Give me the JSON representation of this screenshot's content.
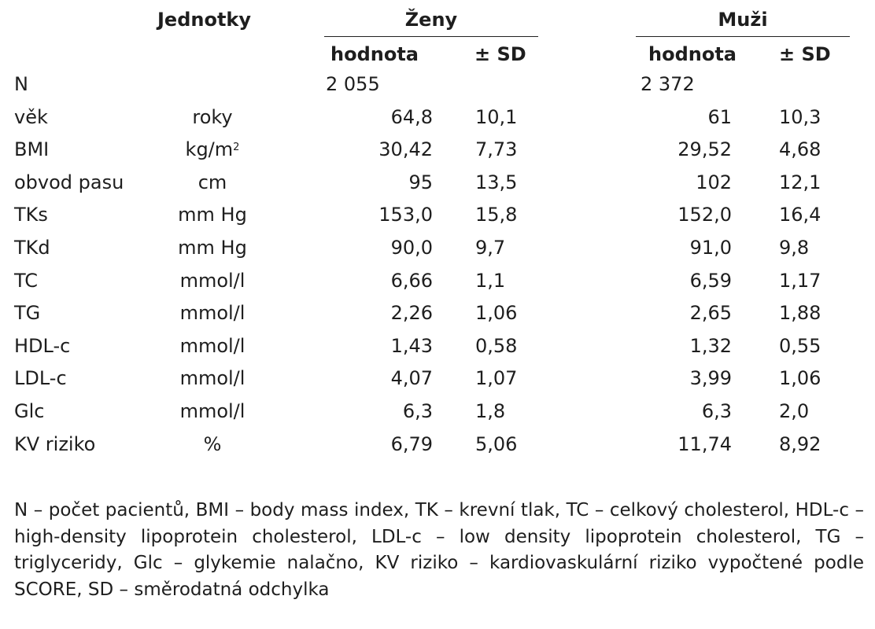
{
  "table": {
    "header": {
      "units": "Jednotky",
      "women": "Ženy",
      "men": "Muži",
      "value": "hodnota",
      "sd": "± SD"
    },
    "rows": [
      {
        "label": "N",
        "unit": "",
        "w_val": "2 055",
        "w_sd": "",
        "m_val": "2 372",
        "m_sd": ""
      },
      {
        "label": "věk",
        "unit": "roky",
        "w_val": "64,8",
        "w_sd": "10,1",
        "m_val": "61",
        "m_sd": "10,3"
      },
      {
        "label": "BMI",
        "unit": "kg/m",
        "unit_sup": "2",
        "w_val": "30,42",
        "w_sd": "7,73",
        "m_val": "29,52",
        "m_sd": "4,68"
      },
      {
        "label": "obvod pasu",
        "unit": "cm",
        "w_val": "95",
        "w_sd": "13,5",
        "m_val": "102",
        "m_sd": "12,1"
      },
      {
        "label": "TKs",
        "unit": "mm Hg",
        "w_val": "153,0",
        "w_sd": "15,8",
        "m_val": "152,0",
        "m_sd": "16,4"
      },
      {
        "label": "TKd",
        "unit": "mm Hg",
        "w_val": "90,0",
        "w_sd": "9,7",
        "m_val": "91,0",
        "m_sd": "9,8"
      },
      {
        "label": "TC",
        "unit": "mmol/l",
        "w_val": "6,66",
        "w_sd": "1,1",
        "m_val": "6,59",
        "m_sd": "1,17"
      },
      {
        "label": "TG",
        "unit": "mmol/l",
        "w_val": "2,26",
        "w_sd": "1,06",
        "m_val": "2,65",
        "m_sd": "1,88"
      },
      {
        "label": "HDL-c",
        "unit": "mmol/l",
        "w_val": "1,43",
        "w_sd": "0,58",
        "m_val": "1,32",
        "m_sd": "0,55"
      },
      {
        "label": "LDL-c",
        "unit": "mmol/l",
        "w_val": "4,07",
        "w_sd": "1,07",
        "m_val": "3,99",
        "m_sd": "1,06"
      },
      {
        "label": "Glc",
        "unit": "mmol/l",
        "w_val": "6,3",
        "w_sd": "1,8",
        "m_val": "6,3",
        "m_sd": "2,0"
      },
      {
        "label": "KV riziko",
        "unit": "%",
        "w_val": "6,79",
        "w_sd": "5,06",
        "m_val": "11,74",
        "m_sd": "8,92"
      }
    ]
  },
  "footnote": "N – počet pacientů, BMI – body mass index, TK – krevní tlak, TC – celkový cholesterol, HDL-c – high-density lipoprotein cholesterol, LDL-c – low density lipoprotein cholesterol, TG – triglyceridy, Glc – glykemie nalačno, KV riziko – kardiovaskulární riziko vypočtené podle SCORE, SD – směrodatná odchylka"
}
